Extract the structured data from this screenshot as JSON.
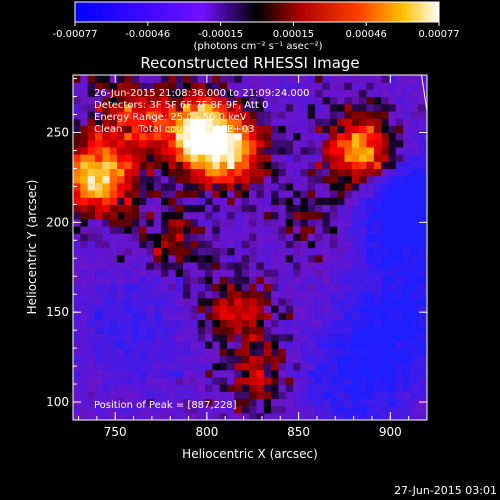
{
  "colorbar": {
    "ticks": [
      "-0.00077",
      "-0.00046",
      "-0.00015",
      "0.00015",
      "0.00046",
      "0.00077"
    ],
    "units": "(photons cm⁻² s⁻¹ asec⁻²)"
  },
  "title": "Reconstructed RHESSI Image",
  "annotation_lines": [
    "26-Jun-2015 21:08:36.000 to 21:09:24.000",
    "Detectors: 3F 5F 6F 7F 8F 9F, Att 0",
    "Energy Range: 25.0 - 50.0 keV",
    "Clean     Total counts: 1.18E+03"
  ],
  "peak_label": "Position of Peak = [887,228]",
  "xlabel": "Heliocentric X (arcsec)",
  "ylabel": "Heliocentric Y (arcsec)",
  "timestamp": "27-Jun-2015 03:01",
  "colors": {
    "background": "#000000",
    "scale": [
      "#0000ff",
      "#8000ff",
      "#c00000",
      "#ff4000",
      "#ffc000",
      "#ffffff"
    ]
  },
  "chart_data": {
    "type": "heatmap",
    "title": "Reconstructed RHESSI Image",
    "xlabel": "Heliocentric X (arcsec)",
    "ylabel": "Heliocentric Y (arcsec)",
    "xlim": [
      727,
      920
    ],
    "ylim": [
      90,
      282
    ],
    "x_ticks": [
      750,
      800,
      850,
      900
    ],
    "y_ticks": [
      100,
      150,
      200,
      250
    ],
    "value_range": [
      -0.00077,
      0.00077
    ],
    "value_units": "photons cm-2 s-1 asec-2",
    "hot_sources": [
      {
        "x": 740,
        "y": 225,
        "value": 0.00077
      },
      {
        "x": 795,
        "y": 250,
        "value": 0.00077
      },
      {
        "x": 812,
        "y": 240,
        "value": 0.0006
      },
      {
        "x": 885,
        "y": 238,
        "value": 0.00077
      },
      {
        "x": 760,
        "y": 260,
        "value": 0.0004
      },
      {
        "x": 815,
        "y": 150,
        "value": 0.00035
      },
      {
        "x": 830,
        "y": 115,
        "value": 0.0003
      },
      {
        "x": 780,
        "y": 190,
        "value": 0.00025
      },
      {
        "x": 860,
        "y": 200,
        "value": 0.0002
      }
    ],
    "cold_regions": [
      {
        "x": 912,
        "y": 208,
        "value": -0.00077
      },
      {
        "x": 905,
        "y": 145,
        "value": -0.0005
      },
      {
        "x": 880,
        "y": 110,
        "value": -0.0004
      },
      {
        "x": 760,
        "y": 140,
        "value": -0.0003
      }
    ],
    "limb_line": [
      [
        917,
        282
      ],
      [
        920,
        262
      ]
    ],
    "peak_position": [
      887,
      228
    ]
  }
}
